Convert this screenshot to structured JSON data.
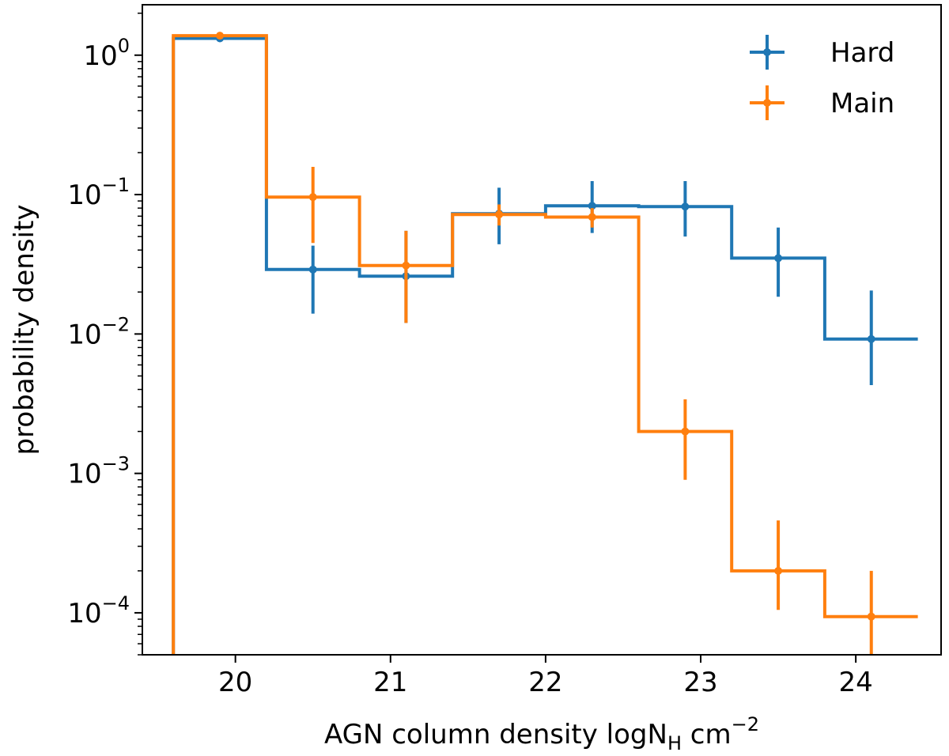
{
  "chart_data": {
    "type": "line",
    "drawstyle": "steps",
    "yscale": "log",
    "xlabel": "AGN column density logN",
    "xlabel_sub": "H",
    "xlabel_unit": "cm",
    "xlabel_unit_exp": "−2",
    "ylabel": "probability density",
    "xlim": [
      19.4,
      24.55
    ],
    "ylim": [
      5e-05,
      2.3
    ],
    "x_ticks": [
      20,
      21,
      22,
      23,
      24
    ],
    "x_tick_labels": [
      "20",
      "21",
      "22",
      "23",
      "24"
    ],
    "y_ticks": [
      1,
      0.1,
      0.01,
      0.001,
      0.0001
    ],
    "y_tick_labels": [
      {
        "base": "10",
        "exp": "0"
      },
      {
        "base": "10",
        "exp": "−1"
      },
      {
        "base": "10",
        "exp": "−2"
      },
      {
        "base": "10",
        "exp": "−3"
      },
      {
        "base": "10",
        "exp": "−4"
      }
    ],
    "bin_edges": [
      19.6,
      20.2,
      20.8,
      21.4,
      22.0,
      22.6,
      23.2,
      23.8,
      24.4
    ],
    "bin_centers": [
      19.9,
      20.5,
      21.1,
      21.7,
      22.3,
      22.9,
      23.5,
      24.1
    ],
    "legend_position": "top-right",
    "series": [
      {
        "name": "Hard",
        "color": "#1f77b4",
        "values": [
          1.32,
          0.029,
          0.026,
          0.073,
          0.083,
          0.082,
          0.035,
          0.0092
        ],
        "err_low": [
          1.29,
          0.014,
          0.012,
          0.044,
          0.053,
          0.05,
          0.0185,
          0.0043
        ],
        "err_high": [
          1.36,
          0.043,
          0.055,
          0.112,
          0.125,
          0.125,
          0.058,
          0.0205
        ]
      },
      {
        "name": "Main",
        "color": "#ff7f0e",
        "values": [
          1.38,
          0.096,
          0.031,
          0.072,
          0.069,
          0.002,
          0.0002,
          9.4e-05
        ],
        "err_low": [
          1.35,
          0.045,
          0.012,
          0.06,
          0.058,
          0.0009,
          0.000105,
          5e-05
        ],
        "err_high": [
          1.41,
          0.158,
          0.055,
          0.085,
          0.08,
          0.0034,
          0.00046,
          0.0002
        ]
      }
    ]
  }
}
